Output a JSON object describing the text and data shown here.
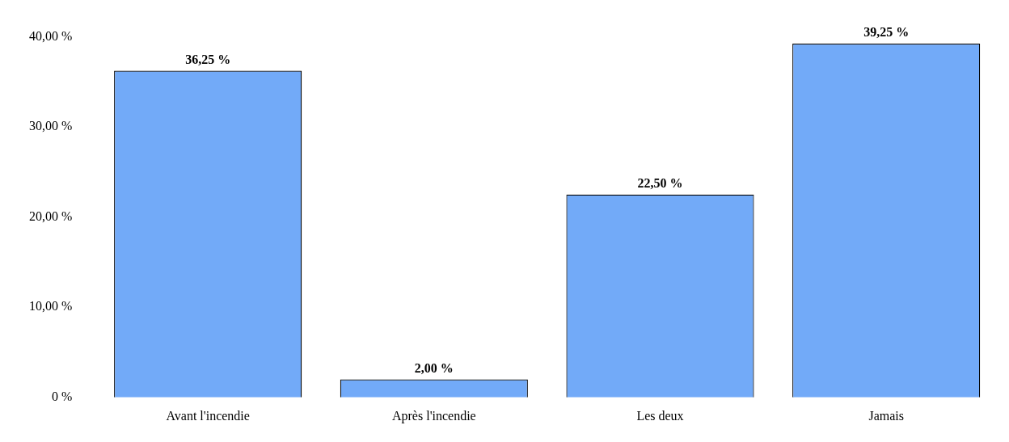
{
  "chart_data": {
    "type": "bar",
    "categories": [
      "Avant l'incendie",
      "Après l'incendie",
      "Les deux",
      "Jamais"
    ],
    "values": [
      36.25,
      2.0,
      22.5,
      39.25
    ],
    "value_labels": [
      "36,25 %",
      "2,00 %",
      "22,50 %",
      "39,25 %"
    ],
    "color": "#72aaf8",
    "ylim": [
      0,
      40
    ],
    "yticks": [
      {
        "value": 0,
        "label": "0 %"
      },
      {
        "value": 10,
        "label": "10,00 %"
      },
      {
        "value": 20,
        "label": "20,00 %"
      },
      {
        "value": 30,
        "label": "30,00 %"
      },
      {
        "value": 40,
        "label": "40,00 %"
      }
    ],
    "grid": false,
    "legend": false
  }
}
